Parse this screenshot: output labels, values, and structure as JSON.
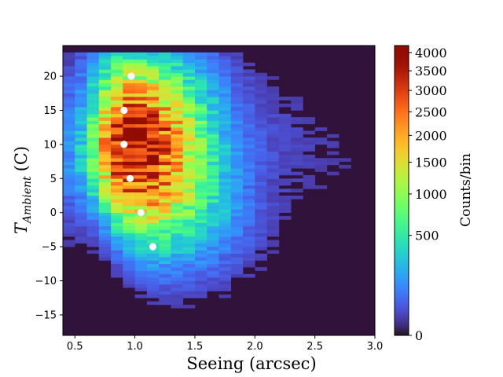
{
  "chart_data": {
    "type": "heatmap",
    "title": "",
    "xlabel": "Seeing (arcsec)",
    "ylabel_main": "T",
    "ylabel_sub": "Ambient",
    "ylabel_unit": "(C)",
    "xlim": [
      0.4,
      3.0
    ],
    "ylim": [
      -18,
      24.5
    ],
    "x_ticks": [
      0.5,
      1.0,
      1.5,
      2.0,
      2.5,
      3.0
    ],
    "x_tick_labels": [
      "0.5",
      "1.0",
      "1.5",
      "2.0",
      "2.5",
      "3.0"
    ],
    "y_ticks": [
      -15,
      -10,
      -5,
      0,
      5,
      10,
      15,
      20
    ],
    "y_tick_labels": [
      "−15",
      "−10",
      "−5",
      "0",
      "5",
      "10",
      "15",
      "20"
    ],
    "colorbar": {
      "label": "Counts/bin",
      "scale": "sqrt",
      "range": [
        0,
        4200
      ],
      "ticks": [
        0,
        500,
        1000,
        1500,
        2000,
        2500,
        3000,
        3500,
        4000
      ],
      "tick_labels": [
        "0",
        "500",
        "1000",
        "1500",
        "2000",
        "2500",
        "3000",
        "3500",
        "4000"
      ],
      "colormap": "turbo"
    },
    "bin_width_x": 0.1,
    "bin_height_y": 0.5,
    "background_color": "#30123b",
    "median_points": {
      "color": "#ffffff",
      "x": [
        1.15,
        1.05,
        0.96,
        0.91,
        0.91,
        0.97
      ],
      "y": [
        -5,
        0,
        5,
        10,
        15,
        20
      ]
    }
  }
}
